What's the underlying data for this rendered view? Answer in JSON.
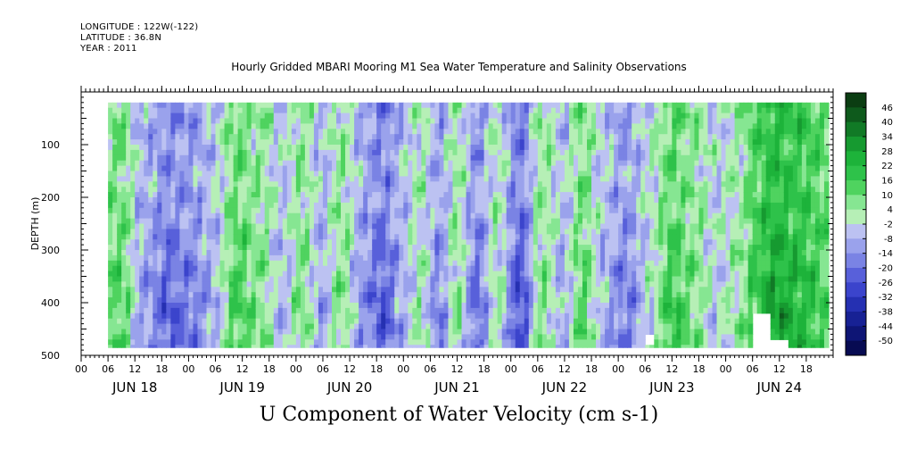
{
  "header": {
    "longitude": "LONGITUDE : 122W(-122)",
    "latitude": "LATITUDE : 36.8N",
    "year": "YEAR : 2011"
  },
  "chart_data": {
    "type": "heatmap",
    "title": "Hourly Gridded MBARI Mooring M1 Sea Water Temperature and Salinity Observations",
    "variable_label": "U Component of Water Velocity (cm s-1)",
    "ylabel": "DEPTH (m)",
    "y_ticks": [
      100,
      200,
      300,
      400,
      500
    ],
    "ylim": [
      500,
      0
    ],
    "hour_ticks": [
      "00",
      "06",
      "12",
      "18",
      "00",
      "06",
      "12",
      "18",
      "00",
      "06",
      "12",
      "18",
      "00",
      "06",
      "12",
      "18",
      "00",
      "06",
      "12",
      "18",
      "00",
      "06",
      "12",
      "18",
      "00",
      "06",
      "12",
      "18"
    ],
    "day_labels": [
      "JUN 18",
      "JUN 19",
      "JUN 20",
      "JUN 21",
      "JUN 22",
      "JUN 23",
      "JUN 24"
    ],
    "data_extent": {
      "start": "JUN 18 06",
      "end": "JUN 24 24",
      "top_depth_m": 20,
      "bottom_depth_m": 485
    },
    "colorbar": {
      "levels": [
        "46",
        "40",
        "34",
        "28",
        "22",
        "16",
        "10",
        "4",
        "-2",
        "-8",
        "-14",
        "-20",
        "-26",
        "-32",
        "-38",
        "-44",
        "-50"
      ],
      "colors": [
        "#0b3d12",
        "#0e5a1c",
        "#117a26",
        "#169a30",
        "#1db33a",
        "#2ec24a",
        "#4fd35f",
        "#86e692",
        "#b6efb6",
        "#bcc2f2",
        "#9aa2ec",
        "#7a83e4",
        "#5860da",
        "#3b44cc",
        "#2530b2",
        "#172194",
        "#0e1575",
        "#070b52"
      ]
    },
    "pattern": "Alternating vertical bands of positive (green) and negative (blue/lavender) velocity; strongest negatives (dark blue) near JUN 18 18h, JUN 20 18h and JUN 21 12h; strongest positives (dark green) during JUN 24; small data gaps near bottom around JUN 23 12h and JUN 24 06-12h."
  }
}
